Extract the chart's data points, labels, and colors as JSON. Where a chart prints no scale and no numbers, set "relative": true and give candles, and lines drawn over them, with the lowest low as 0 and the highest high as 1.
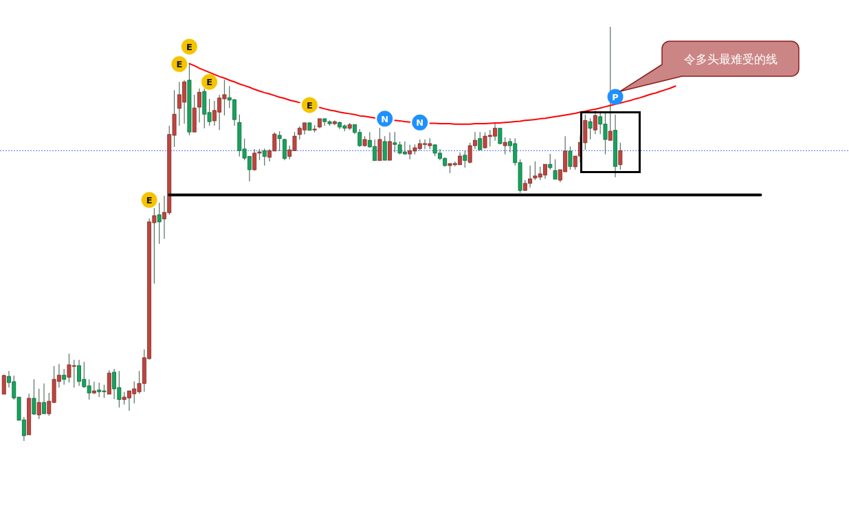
{
  "chart_data": {
    "type": "candlestick",
    "relative": true,
    "categories": [
      null,
      null,
      null,
      null,
      null,
      null,
      null,
      null,
      null,
      null,
      null,
      null,
      null,
      null,
      null,
      null,
      null,
      null,
      null,
      null,
      null,
      null,
      null,
      null,
      null,
      null,
      null,
      null,
      null,
      null,
      null,
      null,
      null,
      null,
      null,
      null,
      null,
      null,
      null,
      null,
      null,
      null,
      null,
      null,
      null,
      null,
      null,
      null,
      null,
      null,
      null,
      null,
      null,
      null,
      null,
      null,
      null,
      null,
      null,
      null,
      null,
      null,
      null,
      null,
      null,
      null,
      null,
      null,
      null,
      null,
      null,
      null,
      null,
      null,
      null,
      null,
      null,
      null,
      null,
      null,
      null,
      null,
      null,
      null,
      null,
      null,
      null,
      null,
      null,
      null,
      null,
      null,
      null,
      null,
      null,
      null,
      null,
      null,
      null,
      null,
      null,
      null,
      null,
      null,
      null,
      null,
      null,
      null,
      null,
      null,
      null,
      null,
      null,
      null,
      null,
      null,
      null,
      null,
      null,
      null,
      null,
      null,
      null,
      null,
      null,
      null,
      null,
      null,
      null,
      null,
      null,
      null,
      null,
      null,
      null,
      null,
      null,
      null,
      null,
      null,
      null,
      null,
      null,
      null,
      null,
      null,
      null,
      null,
      null,
      null,
      null,
      null,
      null,
      null,
      null,
      null,
      null,
      null,
      null,
      null,
      null,
      null,
      null,
      null,
      null,
      null,
      null,
      null,
      null
    ],
    "ohlc": [
      [
        0.113,
        0.161,
        0.113,
        0.158
      ],
      [
        0.156,
        0.169,
        0.129,
        0.141
      ],
      [
        0.143,
        0.158,
        0.1,
        0.104
      ],
      [
        0.106,
        0.106,
        0.05,
        0.05
      ],
      [
        0.051,
        0.058,
        0,
        0.013
      ],
      [
        0.015,
        0.114,
        0.015,
        0.103
      ],
      [
        0.103,
        0.149,
        0.063,
        0.065
      ],
      [
        0.063,
        0.126,
        0.053,
        0.093
      ],
      [
        0.093,
        0.139,
        0.066,
        0.066
      ],
      [
        0.066,
        0.116,
        0.061,
        0.096
      ],
      [
        0.093,
        0.181,
        0.091,
        0.149
      ],
      [
        0.144,
        0.186,
        0.129,
        0.159
      ],
      [
        0.159,
        0.174,
        0.136,
        0.149
      ],
      [
        0.154,
        0.211,
        0.141,
        0.184
      ],
      [
        0.181,
        0.196,
        0.129,
        0.182
      ],
      [
        0.182,
        0.196,
        0.133,
        0.144
      ],
      [
        0.149,
        0.191,
        0.128,
        0.131
      ],
      [
        0.133,
        0.149,
        0.1,
        0.116
      ],
      [
        0.116,
        0.143,
        0.113,
        0.121
      ],
      [
        0.123,
        0.141,
        0.106,
        0.119
      ],
      [
        0.121,
        0.136,
        0.104,
        0.119
      ],
      [
        0.113,
        0.171,
        0.113,
        0.164
      ],
      [
        0.166,
        0.174,
        0.101,
        0.126
      ],
      [
        0.129,
        0.169,
        0.081,
        0.1
      ],
      [
        0.1,
        0.118,
        0.088,
        0.106
      ],
      [
        0.104,
        0.121,
        0.073,
        0.121
      ],
      [
        0.114,
        0.144,
        0.091,
        0.126
      ],
      [
        0.119,
        0.169,
        0.114,
        0.139
      ],
      [
        0.139,
        0.221,
        0.119,
        0.201
      ],
      [
        0.199,
        0.537,
        0.196,
        0.529
      ],
      [
        0.527,
        0.562,
        0.38,
        0.544
      ],
      [
        0.546,
        0.575,
        0.476,
        0.529
      ],
      [
        0.536,
        0.592,
        0.488,
        0.552
      ],
      [
        0.551,
        0.761,
        0.546,
        0.74
      ],
      [
        0.738,
        0.847,
        0.71,
        0.789
      ],
      [
        0.803,
        0.867,
        0.761,
        0.836
      ],
      [
        0.818,
        0.871,
        0.766,
        0.867
      ],
      [
        0.871,
        0.912,
        0.738,
        0.746
      ],
      [
        0.746,
        0.836,
        0.746,
        0.804
      ],
      [
        0.806,
        0.851,
        0.769,
        0.842
      ],
      [
        0.844,
        0.851,
        0.755,
        0.789
      ],
      [
        0.793,
        0.826,
        0.761,
        0.771
      ],
      [
        0.773,
        0.821,
        0.761,
        0.798
      ],
      [
        0.794,
        0.836,
        0.751,
        0.828
      ],
      [
        0.826,
        0.872,
        0.786,
        0.836
      ],
      [
        0.829,
        0.857,
        0.804,
        0.823
      ],
      [
        0.824,
        0.826,
        0.761,
        0.776
      ],
      [
        0.769,
        0.788,
        0.687,
        0.701
      ],
      [
        0.705,
        0.73,
        0.678,
        0.683
      ],
      [
        0.687,
        0.687,
        0.627,
        0.655
      ],
      [
        0.655,
        0.705,
        0.652,
        0.695
      ],
      [
        0.695,
        0.705,
        0.678,
        0.698
      ],
      [
        0.701,
        0.706,
        0.665,
        0.687
      ],
      [
        0.685,
        0.705,
        0.675,
        0.701
      ],
      [
        0.7,
        0.745,
        0.7,
        0.741
      ],
      [
        0.738,
        0.748,
        0.7,
        0.73
      ],
      [
        0.728,
        0.73,
        0.678,
        0.682
      ],
      [
        0.687,
        0.713,
        0.68,
        0.703
      ],
      [
        0.701,
        0.746,
        0.701,
        0.736
      ],
      [
        0.74,
        0.76,
        0.728,
        0.755
      ],
      [
        0.751,
        0.769,
        0.74,
        0.768
      ],
      [
        0.768,
        0.769,
        0.75,
        0.75
      ],
      [
        0.751,
        0.763,
        0.745,
        0.753
      ],
      [
        0.758,
        0.778,
        0.755,
        0.778
      ],
      [
        0.778,
        0.778,
        0.761,
        0.771
      ],
      [
        0.771,
        0.774,
        0.761,
        0.766
      ],
      [
        0.766,
        0.774,
        0.763,
        0.771
      ],
      [
        0.769,
        0.771,
        0.753,
        0.758
      ],
      [
        0.761,
        0.764,
        0.748,
        0.755
      ],
      [
        0.755,
        0.768,
        0.751,
        0.764
      ],
      [
        0.764,
        0.764,
        0.741,
        0.745
      ],
      [
        0.745,
        0.753,
        0.71,
        0.713
      ],
      [
        0.713,
        0.736,
        0.711,
        0.728
      ],
      [
        0.726,
        0.746,
        0.708,
        0.71
      ],
      [
        0.711,
        0.728,
        0.677,
        0.677
      ],
      [
        0.677,
        0.756,
        0.677,
        0.728
      ],
      [
        0.723,
        0.736,
        0.678,
        0.678
      ],
      [
        0.678,
        0.745,
        0.678,
        0.723
      ],
      [
        0.72,
        0.746,
        0.697,
        0.716
      ],
      [
        0.715,
        0.723,
        0.692,
        0.695
      ],
      [
        0.698,
        0.723,
        0.692,
        0.693
      ],
      [
        0.693,
        0.715,
        0.68,
        0.701
      ],
      [
        0.7,
        0.716,
        0.692,
        0.708
      ],
      [
        0.706,
        0.728,
        0.701,
        0.718
      ],
      [
        0.716,
        0.728,
        0.705,
        0.718
      ],
      [
        0.713,
        0.731,
        0.705,
        0.718
      ],
      [
        0.715,
        0.716,
        0.688,
        0.695
      ],
      [
        0.695,
        0.705,
        0.678,
        0.682
      ],
      [
        0.682,
        0.685,
        0.662,
        0.665
      ],
      [
        0.665,
        0.67,
        0.647,
        0.67
      ],
      [
        0.667,
        0.675,
        0.663,
        0.67
      ],
      [
        0.667,
        0.697,
        0.667,
        0.688
      ],
      [
        0.69,
        0.701,
        0.66,
        0.677
      ],
      [
        0.673,
        0.72,
        0.67,
        0.713
      ],
      [
        0.713,
        0.746,
        0.705,
        0.726
      ],
      [
        0.73,
        0.746,
        0.703,
        0.703
      ],
      [
        0.708,
        0.745,
        0.706,
        0.736
      ],
      [
        0.735,
        0.751,
        0.711,
        0.738
      ],
      [
        0.736,
        0.769,
        0.725,
        0.755
      ],
      [
        0.755,
        0.755,
        0.716,
        0.718
      ],
      [
        0.713,
        0.733,
        0.692,
        0.721
      ],
      [
        0.723,
        0.731,
        0.697,
        0.713
      ],
      [
        0.718,
        0.731,
        0.665,
        0.672
      ],
      [
        0.672,
        0.68,
        0.599,
        0.605
      ],
      [
        0.605,
        0.63,
        0.604,
        0.622
      ],
      [
        0.622,
        0.665,
        0.612,
        0.633
      ],
      [
        0.635,
        0.675,
        0.63,
        0.64
      ],
      [
        0.637,
        0.662,
        0.63,
        0.645
      ],
      [
        0.642,
        0.668,
        0.633,
        0.668
      ],
      [
        0.668,
        0.693,
        0.655,
        0.66
      ],
      [
        0.653,
        0.68,
        0.632,
        0.632
      ],
      [
        0.63,
        0.655,
        0.625,
        0.655
      ],
      [
        0.65,
        0.736,
        0.65,
        0.7
      ],
      [
        0.7,
        0.711,
        0.655,
        0.663
      ],
      [
        0.662,
        0.688,
        0.655,
        0.688
      ],
      [
        0.688,
        0.738,
        0.672,
        0.721
      ],
      [
        0.72,
        0.788,
        0.703,
        0.774
      ],
      [
        0.771,
        0.779,
        0.728,
        0.755
      ],
      [
        0.751,
        0.798,
        0.741,
        0.786
      ],
      [
        0.783,
        0.796,
        0.741,
        0.765
      ],
      [
        0.765,
        0.794,
        0.692,
        0.728
      ],
      [
        0.726,
        1,
        0.726,
        0.748
      ],
      [
        0.75,
        0.788,
        0.637,
        0.663
      ],
      [
        0.667,
        0.72,
        0.655,
        0.701
      ],
      null,
      null,
      null,
      null,
      null,
      null,
      null,
      null,
      null,
      null,
      null,
      null,
      null,
      null,
      null,
      null,
      null,
      null,
      null,
      null,
      null,
      null,
      null,
      null,
      null,
      null,
      null,
      null,
      null,
      null,
      null,
      null,
      null,
      null,
      null,
      null,
      null,
      null,
      null,
      null,
      null,
      null,
      null,
      null,
      null
    ],
    "colors": [
      "#c0453d",
      "#17a35d",
      "#17a35d",
      "#17a35d",
      "#17a35d",
      "#c0453d",
      "#17a35d",
      "#c0453d",
      "#17a35d",
      "#c0453d",
      "#c0453d",
      "#c0453d",
      "#17a35d",
      "#c0453d",
      "#c0453d",
      "#17a35d",
      "#17a35d",
      "#17a35d",
      "#c0453d",
      "#17a35d",
      "#17a35d",
      "#c0453d",
      "#17a35d",
      "#17a35d",
      "#c0453d",
      "#c0453d",
      "#c0453d",
      "#c0453d",
      "#c0453d",
      "#c0453d",
      "#c0453d",
      "#17a35d",
      "#c0453d",
      "#c0453d",
      "#c0453d",
      "#c0453d",
      "#c0453d",
      "#17a35d",
      "#c0453d",
      "#c0453d",
      "#17a35d",
      "#17a35d",
      "#c0453d",
      "#c0453d",
      "#c0453d",
      "#17a35d",
      "#17a35d",
      "#17a35d",
      "#17a35d",
      "#17a35d",
      "#c0453d",
      "#c0453d",
      "#17a35d",
      "#c0453d",
      "#c0453d",
      "#17a35d",
      "#17a35d",
      "#c0453d",
      "#c0453d",
      "#c0453d",
      "#c0453d",
      "#17a35d",
      "#c0453d",
      "#c0453d",
      "#17a35d",
      "#17a35d",
      "#c0453d",
      "#17a35d",
      "#17a35d",
      "#c0453d",
      "#17a35d",
      "#17a35d",
      "#c0453d",
      "#17a35d",
      "#17a35d",
      "#c0453d",
      "#17a35d",
      "#c0453d",
      "#17a35d",
      "#17a35d",
      "#17a35d",
      "#c0453d",
      "#c0453d",
      "#c0453d",
      "#c0453d",
      "#c0453d",
      "#17a35d",
      "#17a35d",
      "#17a35d",
      "#c0453d",
      "#c0453d",
      "#c0453d",
      "#17a35d",
      "#c0453d",
      "#c0453d",
      "#17a35d",
      "#c0453d",
      "#c0453d",
      "#c0453d",
      "#17a35d",
      "#c0453d",
      "#17a35d",
      "#17a35d",
      "#17a35d",
      "#c0453d",
      "#c0453d",
      "#c0453d",
      "#c0453d",
      "#c0453d",
      "#17a35d",
      "#17a35d",
      "#c0453d",
      "#c0453d",
      "#17a35d",
      "#c0453d",
      "#c0453d",
      "#c0453d",
      "#17a35d",
      "#c0453d",
      "#17a35d",
      "#17a35d",
      "#c0453d",
      "#17a35d",
      "#c0453d",
      null,
      null,
      null,
      null,
      null,
      null,
      null,
      null,
      null,
      null,
      null,
      null,
      null,
      null,
      null,
      null,
      null,
      null,
      null,
      null,
      null,
      null,
      null,
      null,
      null,
      null,
      null,
      null,
      null,
      null,
      null,
      null,
      null,
      null,
      null,
      null,
      null,
      null,
      null,
      null,
      null,
      null,
      null,
      null,
      null
    ],
    "series": [
      {
        "type": "line",
        "color": "#ff0000",
        "values": [
          null,
          null,
          null,
          null,
          null,
          null,
          null,
          null,
          null,
          null,
          null,
          null,
          null,
          null,
          null,
          null,
          null,
          null,
          null,
          null,
          null,
          null,
          null,
          null,
          null,
          null,
          null,
          null,
          null,
          null,
          null,
          null,
          null,
          null,
          null,
          null,
          null,
          0.911,
          0.906,
          0.9,
          0.895,
          0.89,
          0.885,
          0.88,
          0.876,
          0.871,
          0.867,
          0.862,
          0.858,
          0.854,
          0.849,
          0.845,
          0.841,
          0.838,
          0.834,
          0.83,
          0.827,
          0.823,
          0.82,
          0.817,
          null,
          null,
          null,
          0.805,
          0.802,
          0.799,
          0.797,
          0.794,
          0.792,
          0.79,
          0.788,
          0.785,
          0.784,
          0.782,
          0.78,
          null,
          null,
          null,
          0.774,
          0.773,
          0.771,
          0.77,
          null,
          null,
          null,
          0.767,
          0.767,
          0.766,
          0.766,
          0.766,
          0.765,
          0.765,
          0.765,
          0.765,
          0.766,
          0.766,
          0.766,
          0.767,
          0.768,
          0.768,
          0.769,
          0.77,
          0.771,
          0.772,
          0.774,
          0.775,
          0.776,
          0.778,
          0.779,
          0.781,
          0.783,
          0.785,
          0.787,
          0.789,
          0.791,
          0.794,
          0.796,
          0.799,
          0.801,
          0.804,
          0.807,
          0.81,
          0.813,
          0.816,
          0.819,
          0.822,
          0.826,
          0.829,
          0.833,
          0.837,
          0.84,
          0.844,
          0.848,
          0.852,
          0.857,
          null,
          null,
          null,
          null,
          null,
          null,
          null,
          null,
          null,
          null,
          null,
          null,
          null,
          null,
          null,
          null,
          null,
          null,
          null,
          null,
          null,
          null,
          null,
          null,
          null,
          null,
          null,
          null,
          null,
          null,
          null,
          null,
          null,
          null
        ]
      },
      {
        "type": "line",
        "color": "#000000",
        "values": [
          null,
          null,
          null,
          null,
          null,
          null,
          null,
          null,
          null,
          null,
          null,
          null,
          null,
          null,
          null,
          null,
          null,
          null,
          null,
          null,
          null,
          null,
          null,
          null,
          null,
          null,
          null,
          null,
          null,
          null,
          null,
          null,
          null,
          0.594,
          0.594,
          0.594,
          0.594,
          0.594,
          0.594,
          0.594,
          0.594,
          0.594,
          0.594,
          0.594,
          0.594,
          0.594,
          0.594,
          0.594,
          0.594,
          0.594,
          0.594,
          0.594,
          0.594,
          0.594,
          0.594,
          0.594,
          0.594,
          0.594,
          0.594,
          0.594,
          0.594,
          0.594,
          0.594,
          0.594,
          0.594,
          0.594,
          0.594,
          0.594,
          0.594,
          0.594,
          0.594,
          0.594,
          0.594,
          0.594,
          0.594,
          0.594,
          0.594,
          0.594,
          0.594,
          0.594,
          0.594,
          0.594,
          0.594,
          0.594,
          0.594,
          0.594,
          0.594,
          0.594,
          0.594,
          0.594,
          0.594,
          0.594,
          0.594,
          0.594,
          0.594,
          0.594,
          0.594,
          0.594,
          0.594,
          0.594,
          0.594,
          0.594,
          0.594,
          0.594,
          0.594,
          0.594,
          0.594,
          0.594,
          0.594,
          0.594,
          0.594,
          0.594,
          0.594,
          0.594,
          0.594,
          0.594,
          0.594,
          0.594,
          0.594,
          0.594,
          0.594,
          0.594,
          0.594,
          0.594,
          0.594,
          0.594,
          0.594,
          0.594,
          0.594,
          0.594,
          0.594,
          0.594,
          0.594,
          0.594,
          0.594,
          0.594,
          0.594,
          0.594,
          0.594,
          0.594,
          0.594,
          0.594,
          0.594,
          0.594,
          0.594,
          0.594,
          0.594,
          0.594,
          0.594,
          0.594,
          0.594,
          0.594,
          null,
          null,
          null,
          null,
          null,
          null,
          null,
          null,
          null,
          null,
          null,
          null,
          null,
          null,
          null,
          null,
          null
        ]
      },
      {
        "type": "scatter",
        "name": "E",
        "color": "#f5c400",
        "marker": "circle",
        "values": [
          null,
          null,
          null,
          null,
          null,
          null,
          null,
          null,
          null,
          null,
          null,
          null,
          null,
          null,
          null,
          null,
          null,
          null,
          null,
          null,
          null,
          null,
          null,
          null,
          null,
          null,
          null,
          null,
          null,
          0.582,
          null,
          null,
          null,
          null,
          null,
          0.91,
          null,
          0.952,
          null,
          null,
          null,
          0.867,
          null,
          null,
          null,
          null,
          null,
          null,
          null,
          null,
          null,
          null,
          null,
          null,
          null,
          null,
          null,
          null,
          null,
          null,
          null,
          0.811,
          null,
          null,
          null,
          null,
          null,
          null,
          null,
          null,
          null,
          null,
          null,
          null,
          null,
          null,
          null,
          null,
          null,
          null,
          null,
          null,
          null,
          null,
          null,
          null,
          null,
          null,
          null,
          null,
          null,
          null,
          null,
          null,
          null,
          null,
          null,
          null,
          null,
          null,
          null,
          null,
          null,
          null,
          null,
          null,
          null,
          null,
          null,
          null,
          null,
          null,
          null,
          null,
          null,
          null,
          null,
          null,
          null,
          null,
          null,
          null,
          null,
          null,
          null,
          null,
          null,
          null,
          null,
          null,
          null,
          null,
          null,
          null,
          null,
          null,
          null,
          null,
          null,
          null,
          null,
          null,
          null,
          null,
          null,
          null,
          null,
          null,
          null,
          null,
          null,
          null,
          null,
          null,
          null,
          null,
          null,
          null,
          null,
          null,
          null,
          null,
          null,
          null,
          null,
          null,
          null,
          null,
          null
        ]
      },
      {
        "type": "scatter",
        "name": "N",
        "color": "#1e90ff",
        "marker": "circle",
        "values": [
          null,
          null,
          null,
          null,
          null,
          null,
          null,
          null,
          null,
          null,
          null,
          null,
          null,
          null,
          null,
          null,
          null,
          null,
          null,
          null,
          null,
          null,
          null,
          null,
          null,
          null,
          null,
          null,
          null,
          null,
          null,
          null,
          null,
          null,
          null,
          null,
          null,
          null,
          null,
          null,
          null,
          null,
          null,
          null,
          null,
          null,
          null,
          null,
          null,
          null,
          null,
          null,
          null,
          null,
          null,
          null,
          null,
          null,
          null,
          null,
          null,
          null,
          null,
          null,
          null,
          null,
          null,
          null,
          null,
          null,
          null,
          null,
          null,
          null,
          null,
          null,
          0.778,
          null,
          null,
          null,
          null,
          null,
          null,
          0.769,
          null,
          null,
          null,
          null,
          null,
          null,
          null,
          null,
          null,
          null,
          null,
          null,
          null,
          null,
          null,
          null,
          null,
          null,
          null,
          null,
          null,
          null,
          null,
          null,
          null,
          null,
          null,
          null,
          null,
          null,
          null,
          null,
          null,
          null,
          null,
          null,
          null,
          null,
          null,
          null,
          null,
          null,
          null,
          null,
          null,
          null,
          null,
          null,
          null,
          null,
          null,
          null,
          null,
          null,
          null,
          null,
          null,
          null,
          null,
          null,
          null,
          null,
          null,
          null,
          null,
          null,
          null,
          null,
          null,
          null,
          null,
          null,
          null,
          null,
          null,
          null,
          null,
          null,
          null,
          null,
          null,
          null,
          null,
          null,
          null
        ]
      },
      {
        "type": "scatter",
        "name": "P",
        "color": "#1e90ff",
        "marker": "circle",
        "values": [
          null,
          null,
          null,
          null,
          null,
          null,
          null,
          null,
          null,
          null,
          null,
          null,
          null,
          null,
          null,
          null,
          null,
          null,
          null,
          null,
          null,
          null,
          null,
          null,
          null,
          null,
          null,
          null,
          null,
          null,
          null,
          null,
          null,
          null,
          null,
          null,
          null,
          null,
          null,
          null,
          null,
          null,
          null,
          null,
          null,
          null,
          null,
          null,
          null,
          null,
          null,
          null,
          null,
          null,
          null,
          null,
          null,
          null,
          null,
          null,
          null,
          null,
          null,
          null,
          null,
          null,
          null,
          null,
          null,
          null,
          null,
          null,
          null,
          null,
          null,
          null,
          null,
          null,
          null,
          null,
          null,
          null,
          null,
          null,
          null,
          null,
          null,
          null,
          null,
          null,
          null,
          null,
          null,
          null,
          null,
          null,
          null,
          null,
          null,
          null,
          null,
          null,
          null,
          null,
          null,
          null,
          null,
          null,
          null,
          null,
          null,
          null,
          null,
          null,
          null,
          null,
          null,
          null,
          null,
          null,
          null,
          null,
          0.831,
          null,
          null,
          null,
          null,
          null,
          null,
          null,
          null,
          null,
          null,
          null,
          null,
          null,
          null,
          null,
          null,
          null,
          null,
          null,
          null,
          null,
          null,
          null,
          null,
          null,
          null,
          null,
          null,
          null,
          null,
          null,
          null,
          null,
          null,
          null,
          null,
          null,
          null,
          null,
          null,
          null,
          null,
          null,
          null,
          null,
          null
        ]
      }
    ],
    "ref_lines": [
      {
        "axis": "y",
        "value": 0.701,
        "color": "#4a6cf0",
        "line_style": "dotted"
      }
    ],
    "annotations": [
      "令多头最难受的线"
    ]
  }
}
